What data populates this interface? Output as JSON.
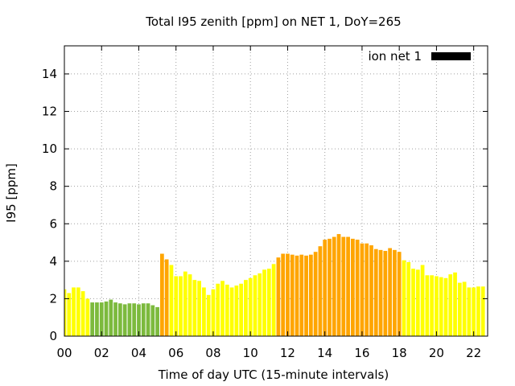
{
  "chart_data": {
    "type": "bar",
    "title": "Total I95 zenith [ppm] on NET 1, DoY=265",
    "xlabel": "Time of day UTC (15-minute intervals)",
    "ylabel": "I95 [ppm]",
    "xlim": [
      0,
      22.75
    ],
    "ylim": [
      0,
      15.5
    ],
    "xticks": [
      "00",
      "02",
      "04",
      "06",
      "08",
      "10",
      "12",
      "14",
      "16",
      "18",
      "20",
      "22"
    ],
    "yticks": [
      "0",
      "2",
      "4",
      "6",
      "8",
      "10",
      "12",
      "14"
    ],
    "grid": true,
    "legend": {
      "position": "top-right",
      "label": "ion net 1",
      "color": "#000000"
    },
    "color_scale": {
      "low": "#7cba3d",
      "mid": "#ffff00",
      "high": "#ffa500"
    },
    "series": [
      {
        "name": "ion net 1",
        "x": [
          0.0,
          0.25,
          0.5,
          0.75,
          1.0,
          1.25,
          1.5,
          1.75,
          2.0,
          2.25,
          2.5,
          2.75,
          3.0,
          3.25,
          3.5,
          3.75,
          4.0,
          4.25,
          4.5,
          4.75,
          5.0,
          5.25,
          5.5,
          5.75,
          6.0,
          6.25,
          6.5,
          6.75,
          7.0,
          7.25,
          7.5,
          7.75,
          8.0,
          8.25,
          8.5,
          8.75,
          9.0,
          9.25,
          9.5,
          9.75,
          10.0,
          10.25,
          10.5,
          10.75,
          11.0,
          11.25,
          11.5,
          11.75,
          12.0,
          12.25,
          12.5,
          12.75,
          13.0,
          13.25,
          13.5,
          13.75,
          14.0,
          14.25,
          14.5,
          14.75,
          15.0,
          15.25,
          15.5,
          15.75,
          16.0,
          16.25,
          16.5,
          16.75,
          17.0,
          17.25,
          17.5,
          17.75,
          18.0,
          18.25,
          18.5,
          18.75,
          19.0,
          19.25,
          19.5,
          19.75,
          20.0,
          20.25,
          20.5,
          20.75,
          21.0,
          21.25,
          21.5,
          21.75,
          22.0,
          22.25,
          22.5
        ],
        "values": [
          2.5,
          2.3,
          2.6,
          2.6,
          2.4,
          2.0,
          1.8,
          1.8,
          1.8,
          1.85,
          1.95,
          1.8,
          1.75,
          1.7,
          1.75,
          1.75,
          1.7,
          1.75,
          1.75,
          1.65,
          1.55,
          4.4,
          4.1,
          3.8,
          3.2,
          3.2,
          3.45,
          3.3,
          3.0,
          2.95,
          2.6,
          2.2,
          2.5,
          2.8,
          2.95,
          2.75,
          2.6,
          2.7,
          2.8,
          3.0,
          3.1,
          3.25,
          3.35,
          3.55,
          3.6,
          3.85,
          4.2,
          4.4,
          4.4,
          4.35,
          4.3,
          4.35,
          4.3,
          4.35,
          4.5,
          4.8,
          5.15,
          5.2,
          5.3,
          5.45,
          5.3,
          5.3,
          5.2,
          5.15,
          4.95,
          4.95,
          4.85,
          4.65,
          4.6,
          4.55,
          4.7,
          4.6,
          4.5,
          4.05,
          3.95,
          3.6,
          3.55,
          3.8,
          3.25,
          3.25,
          3.2,
          3.15,
          3.1,
          3.3,
          3.4,
          2.85,
          2.9,
          2.6,
          2.6,
          2.65,
          2.65
        ],
        "colors": [
          "#ffff00",
          "#ffff00",
          "#ffff00",
          "#ffff00",
          "#ffff00",
          "#ffff00",
          "#7cba3d",
          "#7cba3d",
          "#7cba3d",
          "#7cba3d",
          "#7cba3d",
          "#7cba3d",
          "#7cba3d",
          "#7cba3d",
          "#7cba3d",
          "#7cba3d",
          "#7cba3d",
          "#7cba3d",
          "#7cba3d",
          "#7cba3d",
          "#7cba3d",
          "#ffa500",
          "#ffa500",
          "#ffff00",
          "#ffff00",
          "#ffff00",
          "#ffff00",
          "#ffff00",
          "#ffff00",
          "#ffff00",
          "#ffff00",
          "#ffff00",
          "#ffff00",
          "#ffff00",
          "#ffff00",
          "#ffff00",
          "#ffff00",
          "#ffff00",
          "#ffff00",
          "#ffff00",
          "#ffff00",
          "#ffff00",
          "#ffff00",
          "#ffff00",
          "#ffff00",
          "#ffff00",
          "#ffa500",
          "#ffa500",
          "#ffa500",
          "#ffa500",
          "#ffa500",
          "#ffa500",
          "#ffa500",
          "#ffa500",
          "#ffa500",
          "#ffa500",
          "#ffa500",
          "#ffa500",
          "#ffa500",
          "#ffa500",
          "#ffa500",
          "#ffa500",
          "#ffa500",
          "#ffa500",
          "#ffa500",
          "#ffa500",
          "#ffa500",
          "#ffa500",
          "#ffa500",
          "#ffa500",
          "#ffa500",
          "#ffa500",
          "#ffa500",
          "#ffff00",
          "#ffff00",
          "#ffff00",
          "#ffff00",
          "#ffff00",
          "#ffff00",
          "#ffff00",
          "#ffff00",
          "#ffff00",
          "#ffff00",
          "#ffff00",
          "#ffff00",
          "#ffff00",
          "#ffff00",
          "#ffff00",
          "#ffff00",
          "#ffff00",
          "#ffff00"
        ]
      }
    ]
  }
}
